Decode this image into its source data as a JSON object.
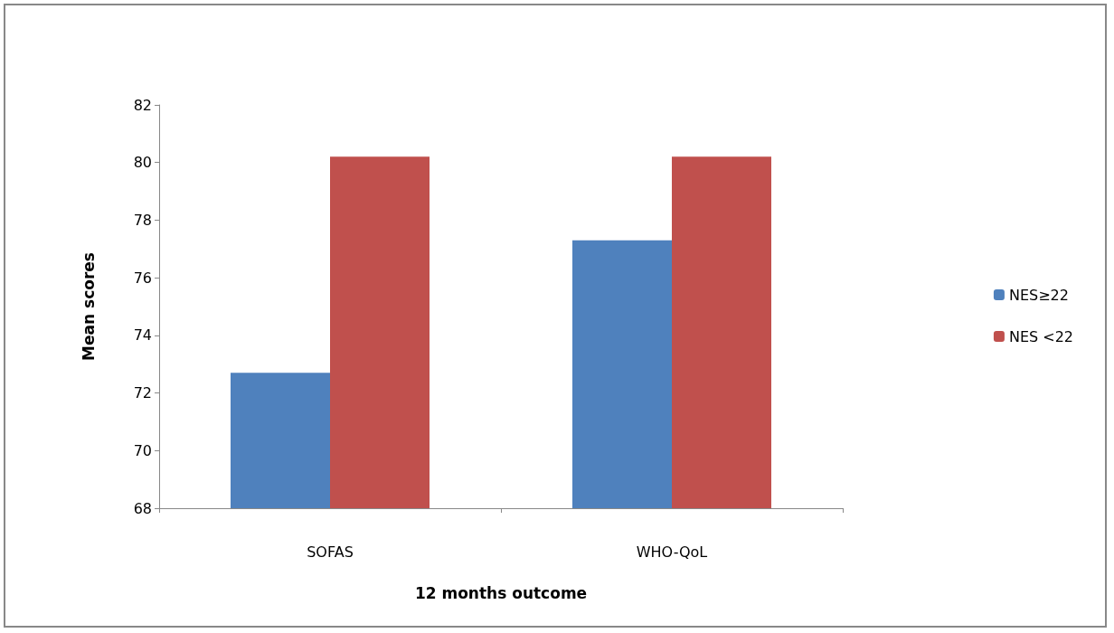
{
  "chart_data": {
    "type": "bar",
    "xlabel": "12 months outcome",
    "ylabel": "Mean scores",
    "categories": [
      "SOFAS",
      "WHO-QoL"
    ],
    "series": [
      {
        "name": "NES≥22",
        "color": "#4f81bd",
        "values": [
          72.7,
          77.3
        ]
      },
      {
        "name": "NES <22",
        "color": "#c0504d",
        "values": [
          80.2,
          80.2
        ]
      }
    ],
    "ylim": [
      68,
      82
    ],
    "yticks": [
      68,
      70,
      72,
      74,
      76,
      78,
      80,
      82
    ],
    "grid": false,
    "legend": "right"
  }
}
